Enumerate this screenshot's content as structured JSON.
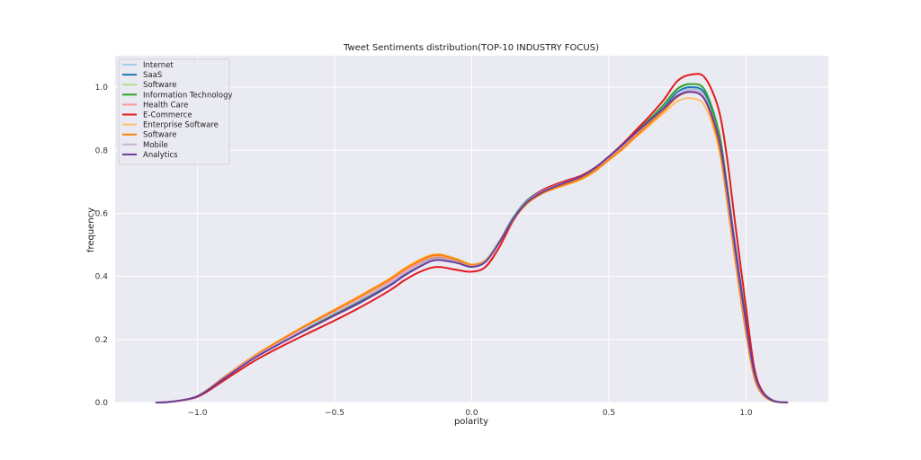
{
  "chart_data": {
    "type": "line",
    "title": "Tweet Sentiments distribution(TOP-10 INDUSTRY FOCUS)",
    "xlabel": "polarity",
    "ylabel": "frequency",
    "xlim": [
      -1.3,
      1.3
    ],
    "ylim": [
      0.0,
      1.1
    ],
    "xticks": [
      -1.0,
      -0.5,
      0.0,
      0.5,
      1.0
    ],
    "xtick_labels": [
      "−1.0",
      "−0.5",
      "0.0",
      "0.5",
      "1.0"
    ],
    "yticks": [
      0.0,
      0.2,
      0.4,
      0.6,
      0.8,
      1.0
    ],
    "ytick_labels": [
      "0.0",
      "0.2",
      "0.4",
      "0.6",
      "0.8",
      "1.0"
    ],
    "grid": true,
    "legend_position": "top-left",
    "background_color": "#eaeaf2",
    "grid_color": "#ffffff",
    "x": [
      -1.15,
      -1.1,
      -1.0,
      -0.9,
      -0.8,
      -0.7,
      -0.6,
      -0.5,
      -0.4,
      -0.3,
      -0.25,
      -0.2,
      -0.15,
      -0.12,
      -0.1,
      -0.05,
      0.0,
      0.05,
      0.1,
      0.15,
      0.2,
      0.25,
      0.3,
      0.35,
      0.4,
      0.45,
      0.5,
      0.55,
      0.6,
      0.65,
      0.7,
      0.75,
      0.8,
      0.85,
      0.9,
      0.93,
      0.96,
      1.0,
      1.03,
      1.06,
      1.1,
      1.15
    ],
    "series": [
      {
        "name": "Internet",
        "color": "#a6cee3",
        "values": [
          0,
          0.002,
          0.02,
          0.08,
          0.14,
          0.19,
          0.24,
          0.285,
          0.33,
          0.38,
          0.41,
          0.435,
          0.458,
          0.462,
          0.46,
          0.45,
          0.435,
          0.45,
          0.51,
          0.58,
          0.635,
          0.665,
          0.685,
          0.7,
          0.715,
          0.74,
          0.775,
          0.81,
          0.85,
          0.89,
          0.93,
          0.975,
          0.995,
          0.97,
          0.84,
          0.67,
          0.48,
          0.24,
          0.09,
          0.03,
          0.005,
          0
        ]
      },
      {
        "name": "SaaS",
        "color": "#1f78b4",
        "values": [
          0,
          0.002,
          0.02,
          0.08,
          0.14,
          0.19,
          0.235,
          0.28,
          0.325,
          0.375,
          0.405,
          0.43,
          0.452,
          0.455,
          0.452,
          0.443,
          0.432,
          0.448,
          0.51,
          0.585,
          0.64,
          0.67,
          0.69,
          0.705,
          0.72,
          0.745,
          0.78,
          0.815,
          0.855,
          0.895,
          0.935,
          0.985,
          1.0,
          0.98,
          0.86,
          0.69,
          0.5,
          0.26,
          0.1,
          0.035,
          0.006,
          0
        ]
      },
      {
        "name": "Software",
        "color": "#b2df8a",
        "values": [
          0,
          0.002,
          0.02,
          0.082,
          0.142,
          0.195,
          0.245,
          0.292,
          0.34,
          0.39,
          0.42,
          0.447,
          0.468,
          0.47,
          0.468,
          0.455,
          0.438,
          0.452,
          0.512,
          0.58,
          0.632,
          0.66,
          0.68,
          0.695,
          0.71,
          0.735,
          0.77,
          0.805,
          0.845,
          0.885,
          0.925,
          0.97,
          0.99,
          0.965,
          0.83,
          0.66,
          0.47,
          0.23,
          0.085,
          0.028,
          0.004,
          0
        ]
      },
      {
        "name": "Information Technology",
        "color": "#33a02c",
        "values": [
          0,
          0.002,
          0.02,
          0.08,
          0.14,
          0.19,
          0.238,
          0.283,
          0.328,
          0.378,
          0.408,
          0.433,
          0.455,
          0.458,
          0.456,
          0.447,
          0.434,
          0.449,
          0.51,
          0.583,
          0.638,
          0.668,
          0.688,
          0.703,
          0.718,
          0.745,
          0.78,
          0.82,
          0.86,
          0.9,
          0.945,
          0.995,
          1.01,
          0.99,
          0.86,
          0.69,
          0.49,
          0.25,
          0.095,
          0.032,
          0.005,
          0
        ]
      },
      {
        "name": "Health Care",
        "color": "#fb9a99",
        "values": [
          0,
          0.002,
          0.02,
          0.08,
          0.14,
          0.19,
          0.24,
          0.287,
          0.333,
          0.383,
          0.413,
          0.44,
          0.46,
          0.463,
          0.461,
          0.45,
          0.436,
          0.45,
          0.508,
          0.578,
          0.63,
          0.66,
          0.68,
          0.695,
          0.712,
          0.738,
          0.773,
          0.81,
          0.85,
          0.89,
          0.93,
          0.972,
          0.99,
          0.965,
          0.83,
          0.66,
          0.47,
          0.23,
          0.085,
          0.028,
          0.004,
          0
        ]
      },
      {
        "name": "E-Commerce",
        "color": "#e31a1c",
        "values": [
          0,
          0.002,
          0.018,
          0.072,
          0.128,
          0.175,
          0.218,
          0.26,
          0.305,
          0.355,
          0.385,
          0.41,
          0.427,
          0.43,
          0.428,
          0.42,
          0.415,
          0.43,
          0.492,
          0.575,
          0.635,
          0.67,
          0.69,
          0.705,
          0.72,
          0.745,
          0.78,
          0.82,
          0.865,
          0.91,
          0.96,
          1.02,
          1.04,
          1.03,
          0.93,
          0.78,
          0.57,
          0.3,
          0.11,
          0.035,
          0.005,
          0
        ]
      },
      {
        "name": "Enterprise Software",
        "color": "#fdbf6f",
        "values": [
          0,
          0.002,
          0.02,
          0.083,
          0.145,
          0.198,
          0.248,
          0.295,
          0.343,
          0.393,
          0.423,
          0.449,
          0.468,
          0.47,
          0.467,
          0.453,
          0.437,
          0.45,
          0.508,
          0.578,
          0.63,
          0.66,
          0.678,
          0.692,
          0.708,
          0.733,
          0.768,
          0.803,
          0.843,
          0.88,
          0.918,
          0.955,
          0.965,
          0.94,
          0.81,
          0.64,
          0.45,
          0.22,
          0.08,
          0.025,
          0.004,
          0
        ]
      },
      {
        "name": "Software",
        "color": "#ff7f00",
        "values": [
          0,
          0.002,
          0.02,
          0.082,
          0.143,
          0.196,
          0.246,
          0.293,
          0.34,
          0.39,
          0.42,
          0.445,
          0.465,
          0.468,
          0.465,
          0.452,
          0.437,
          0.45,
          0.508,
          0.578,
          0.63,
          0.66,
          0.679,
          0.694,
          0.71,
          0.736,
          0.771,
          0.806,
          0.846,
          0.886,
          0.926,
          0.97,
          0.985,
          0.96,
          0.82,
          0.65,
          0.46,
          0.22,
          0.08,
          0.026,
          0.004,
          0
        ]
      },
      {
        "name": "Mobile",
        "color": "#cab2d6",
        "values": [
          0,
          0.002,
          0.02,
          0.08,
          0.14,
          0.19,
          0.24,
          0.285,
          0.33,
          0.378,
          0.408,
          0.433,
          0.453,
          0.456,
          0.454,
          0.444,
          0.432,
          0.448,
          0.51,
          0.582,
          0.636,
          0.666,
          0.686,
          0.701,
          0.717,
          0.743,
          0.778,
          0.814,
          0.854,
          0.893,
          0.932,
          0.975,
          0.99,
          0.965,
          0.84,
          0.67,
          0.48,
          0.24,
          0.09,
          0.03,
          0.005,
          0
        ]
      },
      {
        "name": "Analytics",
        "color": "#6a3d9a",
        "values": [
          0,
          0.002,
          0.02,
          0.078,
          0.137,
          0.186,
          0.232,
          0.276,
          0.32,
          0.37,
          0.4,
          0.426,
          0.448,
          0.452,
          0.45,
          0.442,
          0.43,
          0.446,
          0.507,
          0.58,
          0.634,
          0.664,
          0.684,
          0.7,
          0.717,
          0.744,
          0.78,
          0.817,
          0.857,
          0.895,
          0.933,
          0.972,
          0.985,
          0.96,
          0.84,
          0.68,
          0.49,
          0.25,
          0.095,
          0.032,
          0.005,
          0
        ]
      }
    ]
  }
}
